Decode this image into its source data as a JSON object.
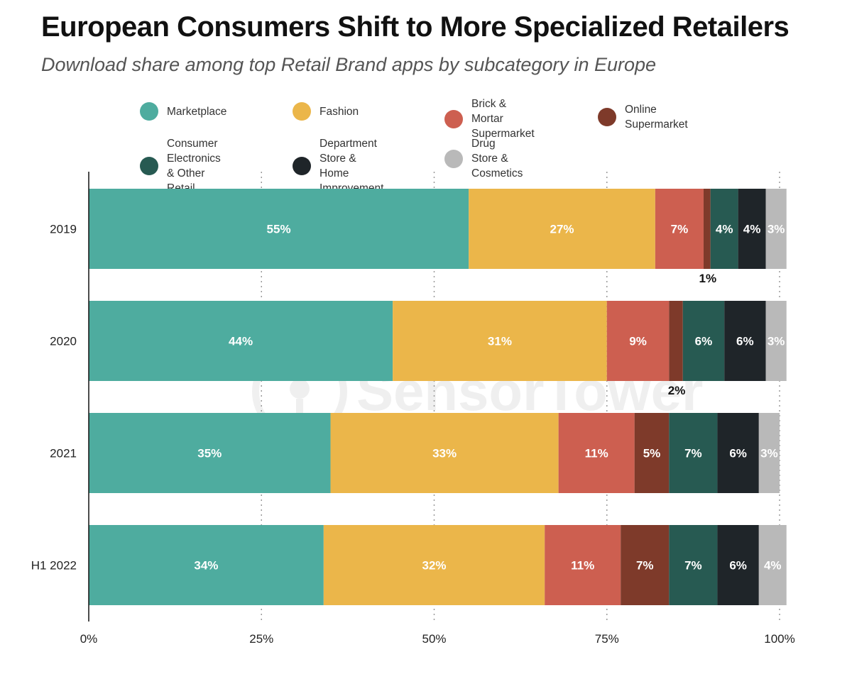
{
  "header": {
    "title": "European Consumers Shift to More Specialized Retailers",
    "subtitle": "Download share among top Retail Brand apps by subcategory in Europe"
  },
  "legend": [
    {
      "label": "Marketplace",
      "color": "#4eac9f"
    },
    {
      "label": "Fashion",
      "color": "#ebb64a"
    },
    {
      "label": "Brick & Mortar\nSupermarket",
      "color": "#cd5f50"
    },
    {
      "label": "Online Supermarket",
      "color": "#7e3a2a"
    },
    {
      "label": "Consumer Electronics\n& Other Retail",
      "color": "#275a52"
    },
    {
      "label": "Department Store &\nHome Improvement",
      "color": "#1f2529"
    },
    {
      "label": "Drug Store &\nCosmetics",
      "color": "#b9b9b9"
    }
  ],
  "watermark": "SensorTower",
  "chart_data": {
    "type": "bar",
    "orientation": "horizontal",
    "stacked": true,
    "categories": [
      "2019",
      "2020",
      "2021",
      "H1 2022"
    ],
    "series": [
      {
        "name": "Marketplace",
        "values": [
          55,
          44,
          35,
          34
        ],
        "labels": [
          "55%",
          "44%",
          "35%",
          "34%"
        ]
      },
      {
        "name": "Fashion",
        "values": [
          27,
          31,
          33,
          32
        ],
        "labels": [
          "27%",
          "31%",
          "33%",
          "32%"
        ]
      },
      {
        "name": "Brick & Mortar Supermarket",
        "values": [
          7,
          9,
          11,
          11
        ],
        "labels": [
          "7%",
          "9%",
          "11%",
          "11%"
        ]
      },
      {
        "name": "Online Supermarket",
        "values": [
          1,
          2,
          5,
          7
        ],
        "labels": [
          "1%",
          "2%",
          "5%",
          "7%"
        ]
      },
      {
        "name": "Consumer Electronics & Other Retail",
        "values": [
          4,
          6,
          7,
          7
        ],
        "labels": [
          "4%",
          "6%",
          "7%",
          "7%"
        ]
      },
      {
        "name": "Department Store & Home Improvement",
        "values": [
          4,
          6,
          6,
          6
        ],
        "labels": [
          "4%",
          "6%",
          "6%",
          "6%"
        ]
      },
      {
        "name": "Drug Store & Cosmetics",
        "values": [
          3,
          3,
          3,
          4
        ],
        "labels": [
          "3%",
          "3%",
          "3%",
          "4%"
        ]
      }
    ],
    "xlim": [
      0,
      100
    ],
    "xticks": [
      "0%",
      "25%",
      "50%",
      "75%",
      "100%"
    ],
    "grid": true,
    "legend_position": "top"
  }
}
